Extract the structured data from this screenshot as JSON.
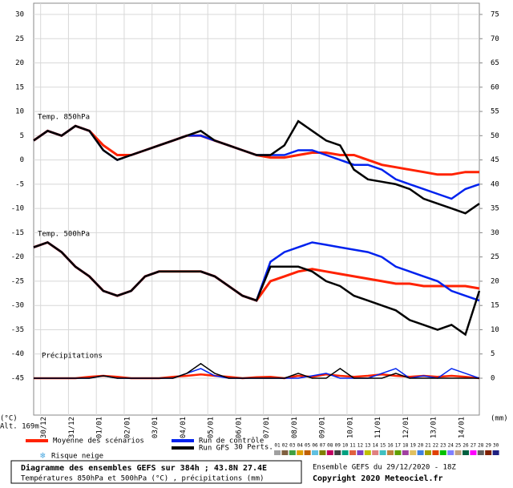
{
  "chart_data": {
    "type": "line",
    "altitude": "Alt. 169m",
    "y_unit": "(°C)",
    "y2_unit": "(mm)",
    "panel_labels": [
      "Temp. 850hPa",
      "Temp. 500hPa",
      "Précipitations"
    ],
    "xlim": [
      0,
      384
    ],
    "xticks": [
      {
        "value": 6,
        "label": "30/12"
      },
      {
        "value": 30,
        "label": "31/12"
      },
      {
        "value": 54,
        "label": "01/01"
      },
      {
        "value": 78,
        "label": "02/01"
      },
      {
        "value": 102,
        "label": "03/01"
      },
      {
        "value": 126,
        "label": "04/01"
      },
      {
        "value": 150,
        "label": "05/01"
      },
      {
        "value": 174,
        "label": "06/01"
      },
      {
        "value": 198,
        "label": "07/01"
      },
      {
        "value": 222,
        "label": "08/01"
      },
      {
        "value": 246,
        "label": "09/01"
      },
      {
        "value": 270,
        "label": "10/01"
      },
      {
        "value": 294,
        "label": "11/01"
      },
      {
        "value": 318,
        "label": "12/01"
      },
      {
        "value": 342,
        "label": "13/01"
      },
      {
        "value": 366,
        "label": "14/01"
      }
    ],
    "ylim": [
      -45,
      30
    ],
    "yticks": [
      -45,
      -40,
      -35,
      -30,
      -25,
      -20,
      -15,
      -10,
      -5,
      0,
      5,
      10,
      15,
      20,
      25,
      30
    ],
    "y2lim": [
      0,
      75
    ],
    "y2ticks": [
      0,
      5,
      10,
      15,
      20,
      25,
      30,
      35,
      40,
      45,
      50,
      55,
      60,
      65,
      70,
      75
    ],
    "grid": true,
    "x": [
      0,
      12,
      24,
      36,
      48,
      60,
      72,
      84,
      96,
      108,
      120,
      132,
      144,
      156,
      168,
      180,
      192,
      204,
      216,
      228,
      240,
      252,
      264,
      276,
      288,
      300,
      312,
      324,
      336,
      348,
      360,
      372,
      384
    ],
    "series": [
      {
        "name": "Moyenne des scénarios",
        "color": "#ff2200",
        "t850": [
          4,
          6,
          5,
          7,
          6,
          3,
          1,
          1,
          2,
          3,
          4,
          5,
          5,
          4,
          3,
          2,
          1,
          0.5,
          0.5,
          1,
          1.5,
          1.5,
          1,
          1,
          0,
          -1,
          -1.5,
          -2,
          -2.5,
          -3,
          -3,
          -2.5,
          -2.5
        ],
        "t500": [
          -18,
          -17,
          -19,
          -22,
          -24,
          -27,
          -28,
          -27,
          -24,
          -23,
          -23,
          -23,
          -23,
          -24,
          -26,
          -28,
          -29,
          -25,
          -24,
          -23,
          -22.5,
          -23,
          -23.5,
          -24,
          -24.5,
          -25,
          -25.5,
          -25.5,
          -26,
          -26,
          -26,
          -26,
          -26.5
        ],
        "precip": [
          0,
          0,
          0,
          0,
          0.3,
          0.5,
          0.3,
          0,
          0,
          0,
          0.3,
          0.5,
          0.8,
          0.5,
          0.3,
          0,
          0.2,
          0.3,
          0,
          0.5,
          0.3,
          0.8,
          0.5,
          0.3,
          0.5,
          0.8,
          0.5,
          0.3,
          0.5,
          0.3,
          0.5,
          0.3,
          0
        ]
      },
      {
        "name": "Run de contrôle",
        "color": "#0022ee",
        "t850": [
          4,
          6,
          5,
          7,
          6,
          2,
          0,
          1,
          2,
          3,
          4,
          5,
          5,
          4,
          3,
          2,
          1,
          1,
          1,
          2,
          2,
          1,
          0,
          -1,
          -1,
          -2,
          -4,
          -5,
          -6,
          -7,
          -8,
          -6,
          -5
        ],
        "t500": [
          -18,
          -17,
          -19,
          -22,
          -24,
          -27,
          -28,
          -27,
          -24,
          -23,
          -23,
          -23,
          -23,
          -24,
          -26,
          -28,
          -29,
          -21,
          -19,
          -18,
          -17,
          -17.5,
          -18,
          -18.5,
          -19,
          -20,
          -22,
          -23,
          -24,
          -25,
          -27,
          -28,
          -29
        ],
        "precip": [
          0,
          0,
          0,
          0,
          0,
          0.5,
          0,
          0,
          0,
          0,
          0,
          1,
          2,
          0.5,
          0,
          0,
          0,
          0,
          0,
          0,
          0.5,
          1,
          0,
          0,
          0,
          1,
          2,
          0,
          0.5,
          0,
          2,
          1,
          0
        ]
      },
      {
        "name": "Run GFS",
        "color": "#000000",
        "t850": [
          4,
          6,
          5,
          7,
          6,
          2,
          0,
          1,
          2,
          3,
          4,
          5,
          6,
          4,
          3,
          2,
          1,
          1,
          3,
          8,
          6,
          4,
          3,
          -2,
          -4,
          -4.5,
          -5,
          -6,
          -8,
          -9,
          -10,
          -11,
          -9
        ],
        "t500": [
          -18,
          -17,
          -19,
          -22,
          -24,
          -27,
          -28,
          -27,
          -24,
          -23,
          -23,
          -23,
          -23,
          -24,
          -26,
          -28,
          -29,
          -22,
          -22,
          -22,
          -23,
          -25,
          -26,
          -28,
          -29,
          -30,
          -31,
          -33,
          -34,
          -35,
          -34,
          -36,
          -27
        ],
        "precip": [
          0,
          0,
          0,
          0,
          0,
          0.5,
          0,
          0,
          0,
          0,
          0,
          1,
          3,
          1,
          0,
          0,
          0,
          0,
          0,
          1,
          0,
          0,
          2,
          0,
          0,
          0,
          1,
          0,
          0,
          0,
          0,
          0,
          0
        ]
      }
    ],
    "perts_label": "30 Perts.",
    "perts": [
      {
        "name": "01",
        "color": "#a0a0a0"
      },
      {
        "name": "02",
        "color": "#806040"
      },
      {
        "name": "03",
        "color": "#40a040"
      },
      {
        "name": "04",
        "color": "#e0a000"
      },
      {
        "name": "05",
        "color": "#c06000"
      },
      {
        "name": "06",
        "color": "#60c0e0"
      },
      {
        "name": "07",
        "color": "#808000"
      },
      {
        "name": "08",
        "color": "#c00060"
      },
      {
        "name": "09",
        "color": "#404040"
      },
      {
        "name": "10",
        "color": "#00a080"
      },
      {
        "name": "11",
        "color": "#e06040"
      },
      {
        "name": "12",
        "color": "#8040c0"
      },
      {
        "name": "13",
        "color": "#c0c000"
      },
      {
        "name": "14",
        "color": "#e08080"
      },
      {
        "name": "15",
        "color": "#40c0c0"
      },
      {
        "name": "16",
        "color": "#c08040"
      },
      {
        "name": "17",
        "color": "#60a000"
      },
      {
        "name": "18",
        "color": "#a040a0"
      },
      {
        "name": "19",
        "color": "#e0c060"
      },
      {
        "name": "20",
        "color": "#4080e0"
      },
      {
        "name": "21",
        "color": "#a0a000"
      },
      {
        "name": "22",
        "color": "#e04000"
      },
      {
        "name": "23",
        "color": "#00c000"
      },
      {
        "name": "24",
        "color": "#8080ff"
      },
      {
        "name": "25",
        "color": "#c0a080"
      },
      {
        "name": "26",
        "color": "#006040"
      },
      {
        "name": "27",
        "color": "#ff00ff"
      },
      {
        "name": "28",
        "color": "#606060"
      },
      {
        "name": "29",
        "color": "#802000"
      },
      {
        "name": "30",
        "color": "#202080"
      }
    ],
    "snow_label": "Risque neige",
    "footer": {
      "title": "Diagramme des ensembles GEFS sur 384h ; 43.8N 27.4E",
      "subtitle": "Températures 850hPa et 500hPa (°C) , précipitations (mm)",
      "run": "Ensemble GEFS du 29/12/2020 - 18Z",
      "copyright": "Copyright 2020 Meteociel.fr"
    }
  }
}
